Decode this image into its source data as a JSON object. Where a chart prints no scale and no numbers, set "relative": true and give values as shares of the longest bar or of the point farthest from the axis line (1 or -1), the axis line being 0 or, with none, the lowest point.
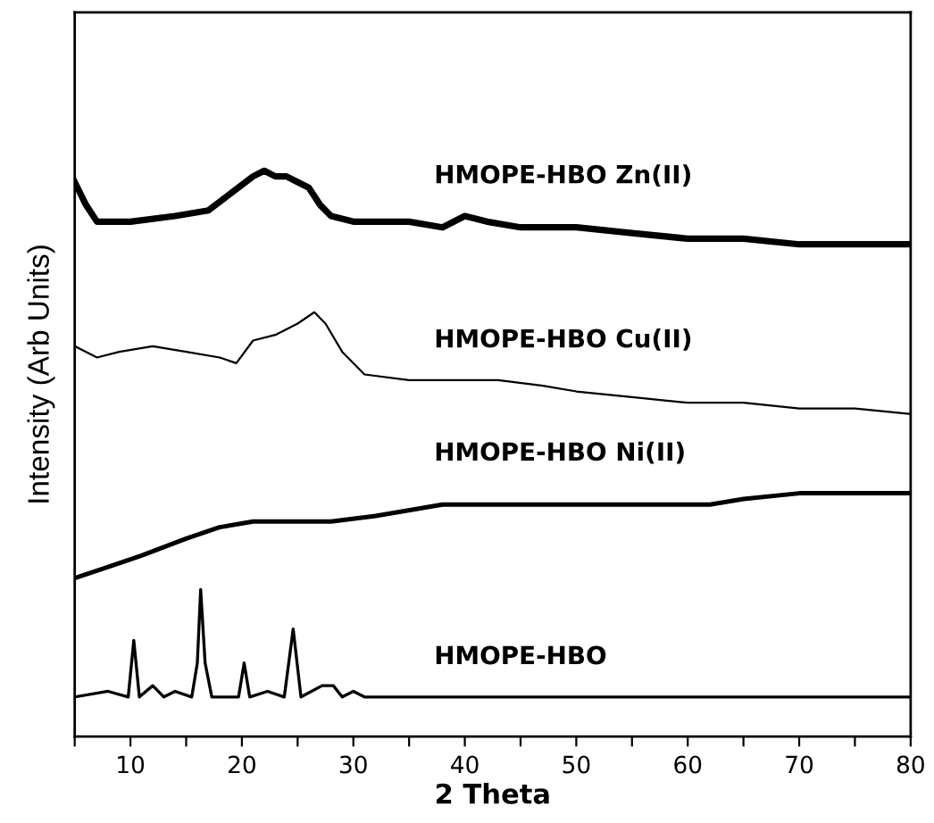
{
  "chart_data": {
    "type": "line",
    "relative": true,
    "xlabel": "2 Theta",
    "ylabel": "Intensity (Arb Units)",
    "xlim": [
      5,
      80
    ],
    "xticks": [
      {
        "value": 5,
        "label": null
      },
      10,
      {
        "value": 15,
        "label": null
      },
      20,
      {
        "value": 25,
        "label": null
      },
      30,
      {
        "value": 35,
        "label": null
      },
      40,
      {
        "value": 45,
        "label": null
      },
      50,
      {
        "value": 55,
        "label": null
      },
      60,
      {
        "value": 65,
        "label": null
      },
      70,
      {
        "value": 75,
        "label": null
      },
      80
    ],
    "grid": false,
    "marker": "none",
    "line_style": "solid",
    "series": [
      {
        "name": "HMOPE-HBO Zn(II)",
        "color": "#000000",
        "x": [
          5,
          6,
          7,
          10,
          14,
          17,
          19,
          21,
          22,
          23,
          24,
          25,
          26,
          27,
          28,
          30,
          35,
          38,
          40,
          42,
          45,
          50,
          55,
          60,
          65,
          70,
          75,
          80
        ],
        "values": [
          0.98,
          0.94,
          0.91,
          0.91,
          0.92,
          0.93,
          0.96,
          0.99,
          1.0,
          0.99,
          0.99,
          0.98,
          0.97,
          0.94,
          0.92,
          0.91,
          0.91,
          0.9,
          0.92,
          0.91,
          0.9,
          0.9,
          0.89,
          0.88,
          0.88,
          0.87,
          0.87,
          0.87
        ]
      },
      {
        "name": "HMOPE-HBO Cu(II)",
        "color": "#000000",
        "x": [
          5,
          7,
          9,
          12,
          15,
          18,
          19.5,
          21,
          23,
          25,
          26.5,
          27.5,
          29,
          31,
          35,
          40,
          43,
          47,
          50,
          55,
          60,
          65,
          70,
          75,
          80
        ],
        "values": [
          0.69,
          0.67,
          0.68,
          0.69,
          0.68,
          0.67,
          0.66,
          0.7,
          0.71,
          0.73,
          0.75,
          0.73,
          0.68,
          0.64,
          0.63,
          0.63,
          0.63,
          0.62,
          0.61,
          0.6,
          0.59,
          0.59,
          0.58,
          0.58,
          0.57
        ]
      },
      {
        "name": "HMOPE-HBO Ni(II)",
        "color": "#000000",
        "x": [
          5,
          8,
          11,
          15,
          18,
          21,
          25,
          28,
          32,
          38,
          43,
          48,
          55,
          62,
          65,
          70,
          75,
          80
        ],
        "values": [
          0.28,
          0.3,
          0.32,
          0.35,
          0.37,
          0.38,
          0.38,
          0.38,
          0.39,
          0.41,
          0.41,
          0.41,
          0.41,
          0.41,
          0.42,
          0.43,
          0.43,
          0.43
        ]
      },
      {
        "name": "HMOPE-HBO",
        "color": "#000000",
        "x": [
          5,
          8,
          9.8,
          10.3,
          10.8,
          12,
          13,
          14,
          15.5,
          16.0,
          16.3,
          16.7,
          17.3,
          19.7,
          20.2,
          20.7,
          22.3,
          23.8,
          24.6,
          25.3,
          27.2,
          28.2,
          29,
          30,
          31,
          40,
          50,
          60,
          70,
          80
        ],
        "values": [
          0.07,
          0.08,
          0.07,
          0.17,
          0.07,
          0.09,
          0.07,
          0.08,
          0.07,
          0.13,
          0.26,
          0.13,
          0.07,
          0.07,
          0.13,
          0.07,
          0.08,
          0.07,
          0.19,
          0.07,
          0.09,
          0.09,
          0.07,
          0.08,
          0.07,
          0.07,
          0.07,
          0.07,
          0.07,
          0.07
        ]
      }
    ]
  }
}
